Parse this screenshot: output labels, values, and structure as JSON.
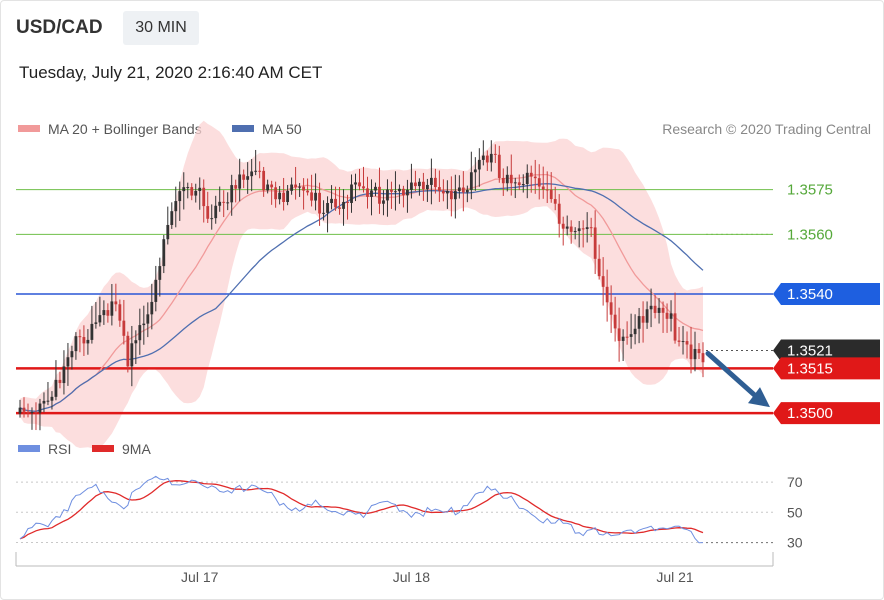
{
  "header": {
    "symbol": "USD/CAD",
    "timeframe": "30 MIN",
    "datetime": "Tuesday, July 21, 2020 2:16:40 AM CET"
  },
  "credit": "Research © 2020 Trading Central",
  "colors": {
    "up": "#333333",
    "down": "#c73b3b",
    "bollinger": "#fbd3d3",
    "ma20": "#f19a9a",
    "ma50": "#4f6fb0",
    "green_level": "#6fbf4a",
    "resistance_line": "#2a56d6",
    "support_line": "#e01818",
    "rsi": "#6f8fe0",
    "rsi_ma": "#e02a2a"
  },
  "chart_data": [
    {
      "type": "line",
      "panel": "price",
      "legend": [
        {
          "name": "MA 20 + Bollinger Bands",
          "color": "#f19a9a"
        },
        {
          "name": "MA 50",
          "color": "#4f6fb0"
        }
      ],
      "x_ticks": [
        {
          "label": "Jul 17",
          "bar": 45
        },
        {
          "label": "Jul 18",
          "bar": 98
        },
        {
          "label": "Jul 21",
          "bar": 164
        }
      ],
      "bar_count": 172,
      "ylim": [
        1.3495,
        1.359
      ],
      "levels": [
        {
          "value": 1.3575,
          "label": "1.3575",
          "style": "green",
          "tag": false
        },
        {
          "value": 1.356,
          "label": "1.3560",
          "style": "green",
          "tag": false
        },
        {
          "value": 1.354,
          "label": "1.3540",
          "style": "blue",
          "tag": true
        },
        {
          "value": 1.3515,
          "label": "1.3515",
          "style": "red",
          "tag": true
        },
        {
          "value": 1.35,
          "label": "1.3500",
          "style": "red",
          "tag": true
        }
      ],
      "last_price": {
        "value": 1.3521,
        "label": "1.3521"
      },
      "close_anchors": [
        [
          0,
          1.3501
        ],
        [
          5,
          1.3504
        ],
        [
          10,
          1.351
        ],
        [
          14,
          1.3522
        ],
        [
          18,
          1.353
        ],
        [
          22,
          1.3537
        ],
        [
          25,
          1.353
        ],
        [
          27,
          1.3515
        ],
        [
          30,
          1.3528
        ],
        [
          33,
          1.354
        ],
        [
          36,
          1.356
        ],
        [
          39,
          1.357
        ],
        [
          42,
          1.3573
        ],
        [
          45,
          1.3572
        ],
        [
          48,
          1.3568
        ],
        [
          51,
          1.3573
        ],
        [
          54,
          1.3575
        ],
        [
          57,
          1.3578
        ],
        [
          60,
          1.3579
        ],
        [
          63,
          1.3576
        ],
        [
          66,
          1.3575
        ],
        [
          69,
          1.3574
        ],
        [
          72,
          1.3572
        ],
        [
          75,
          1.357
        ],
        [
          78,
          1.3572
        ],
        [
          81,
          1.3573
        ],
        [
          84,
          1.3574
        ],
        [
          87,
          1.3572
        ],
        [
          90,
          1.3574
        ],
        [
          93,
          1.3576
        ],
        [
          96,
          1.3576
        ],
        [
          99,
          1.3575
        ],
        [
          102,
          1.3575
        ],
        [
          105,
          1.3575
        ],
        [
          108,
          1.3576
        ],
        [
          111,
          1.3576
        ],
        [
          114,
          1.3579
        ],
        [
          117,
          1.3584
        ],
        [
          120,
          1.3582
        ],
        [
          123,
          1.3579
        ],
        [
          126,
          1.3578
        ],
        [
          129,
          1.3578
        ],
        [
          132,
          1.3571
        ],
        [
          135,
          1.3568
        ],
        [
          138,
          1.3563
        ],
        [
          141,
          1.3566
        ],
        [
          143,
          1.3558
        ],
        [
          145,
          1.3545
        ],
        [
          147,
          1.3535
        ],
        [
          149,
          1.3528
        ],
        [
          151,
          1.3526
        ],
        [
          154,
          1.3532
        ],
        [
          157,
          1.3534
        ],
        [
          160,
          1.3533
        ],
        [
          163,
          1.353
        ],
        [
          165,
          1.3526
        ],
        [
          168,
          1.3522
        ],
        [
          171,
          1.3521
        ]
      ],
      "forecast_arrow": {
        "from": 1.352,
        "to": 1.3502
      }
    },
    {
      "type": "line",
      "panel": "rsi",
      "legend": [
        {
          "name": "RSI",
          "color": "#6f8fe0"
        },
        {
          "name": "9MA",
          "color": "#e02a2a"
        }
      ],
      "ylim": [
        25,
        78
      ],
      "y_ticks": [
        70,
        50,
        30
      ],
      "rsi_anchors": [
        [
          0,
          32
        ],
        [
          4,
          40
        ],
        [
          8,
          45
        ],
        [
          11,
          52
        ],
        [
          14,
          58
        ],
        [
          17,
          63
        ],
        [
          20,
          66
        ],
        [
          23,
          60
        ],
        [
          26,
          53
        ],
        [
          28,
          62
        ],
        [
          31,
          68
        ],
        [
          34,
          72
        ],
        [
          36,
          74
        ],
        [
          39,
          70
        ],
        [
          43,
          71
        ],
        [
          47,
          66
        ],
        [
          51,
          64
        ],
        [
          55,
          68
        ],
        [
          59,
          65
        ],
        [
          62,
          62
        ],
        [
          66,
          56
        ],
        [
          70,
          52
        ],
        [
          74,
          55
        ],
        [
          78,
          50
        ],
        [
          82,
          52
        ],
        [
          86,
          49
        ],
        [
          90,
          53
        ],
        [
          94,
          55
        ],
        [
          98,
          50
        ],
        [
          102,
          51
        ],
        [
          106,
          48
        ],
        [
          110,
          53
        ],
        [
          114,
          62
        ],
        [
          117,
          66
        ],
        [
          120,
          60
        ],
        [
          124,
          57
        ],
        [
          128,
          50
        ],
        [
          132,
          43
        ],
        [
          136,
          42
        ],
        [
          140,
          37
        ],
        [
          144,
          40
        ],
        [
          147,
          34
        ],
        [
          150,
          33
        ],
        [
          154,
          38
        ],
        [
          158,
          42
        ],
        [
          161,
          38
        ],
        [
          164,
          40
        ],
        [
          167,
          36
        ],
        [
          171,
          31
        ]
      ]
    }
  ]
}
